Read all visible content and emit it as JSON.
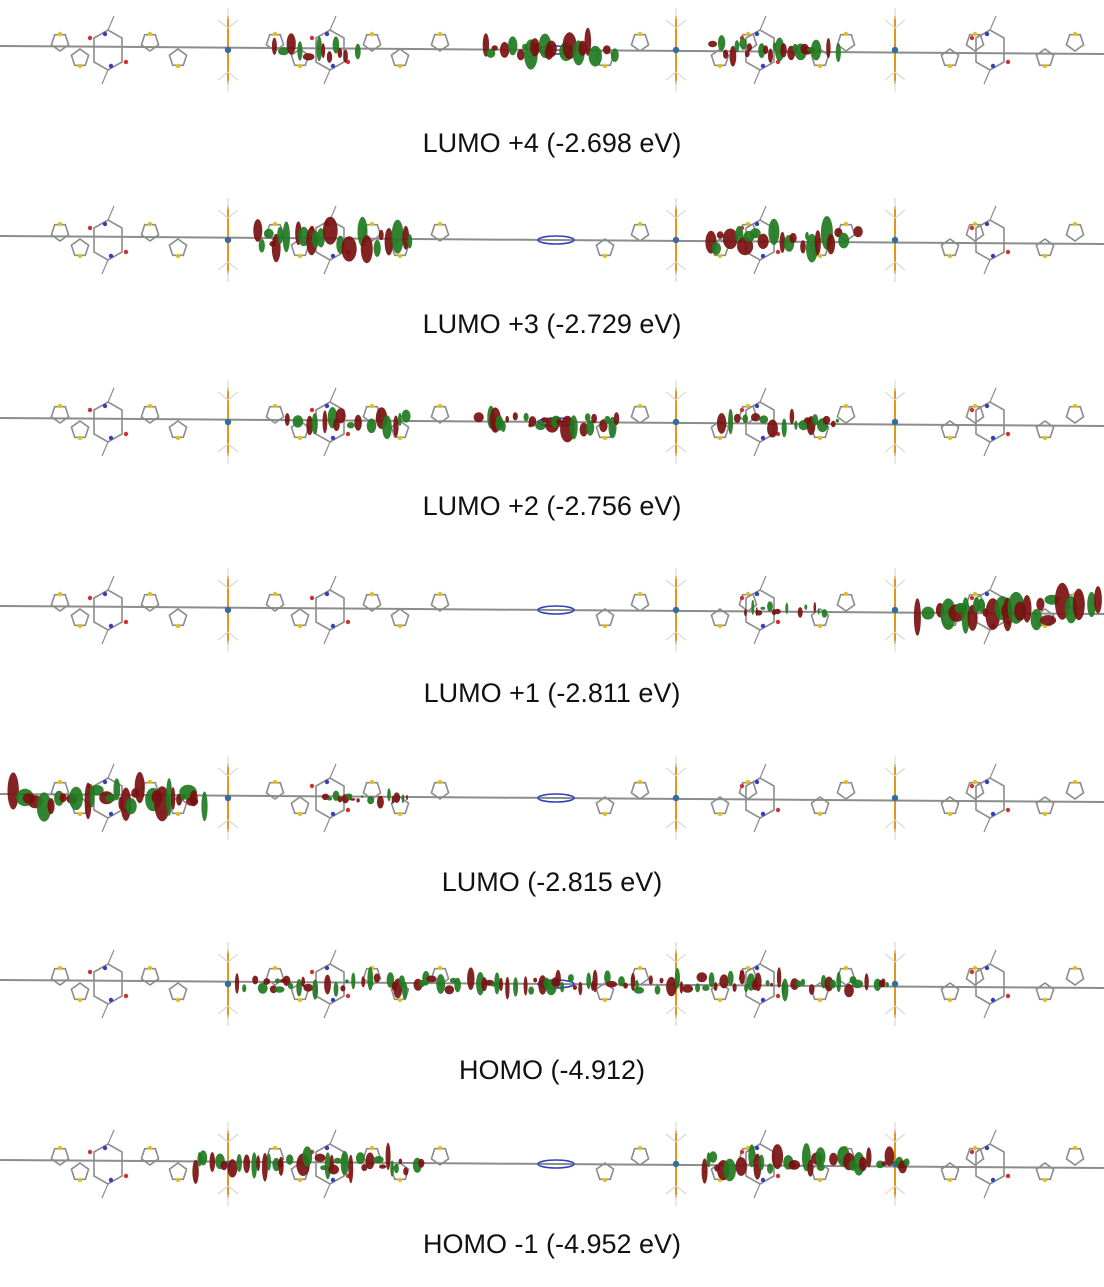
{
  "colors": {
    "positive_lobe": "#1f7a1f",
    "negative_lobe": "#7a1010",
    "backbone": "#8c8c8c",
    "hydrogen": "#d9d9d9",
    "sulfur": "#e0c020",
    "phosphorus": "#e08a00",
    "platinum": "#2f6f9f",
    "nitrogen": "#3040c0",
    "oxygen": "#d03030"
  },
  "orbitals": [
    {
      "label": "LUMO +4 (-2.698 eV)",
      "density": [
        [
          270,
          360,
          0.8
        ],
        [
          480,
          620,
          1.0
        ],
        [
          710,
          840,
          0.8
        ]
      ]
    },
    {
      "label": "LUMO +3 (-2.729 eV)",
      "density": [
        [
          255,
          410,
          1.1
        ],
        [
          705,
          860,
          1.1
        ]
      ]
    },
    {
      "label": "LUMO +2 (-2.756 eV)",
      "density": [
        [
          285,
          410,
          0.8
        ],
        [
          475,
          615,
          1.0
        ],
        [
          715,
          835,
          0.8
        ]
      ]
    },
    {
      "label": "LUMO +1 (-2.811 eV)",
      "density": [
        [
          738,
          830,
          0.5
        ],
        [
          915,
          1104,
          1.2
        ]
      ]
    },
    {
      "label": "LUMO (-2.815 eV)",
      "density": [
        [
          10,
          210,
          1.2
        ],
        [
          320,
          410,
          0.5
        ]
      ]
    },
    {
      "label": "HOMO (-4.912)",
      "density": [
        [
          230,
          890,
          0.75
        ]
      ]
    },
    {
      "label": "HOMO -1 (-4.952 eV)",
      "density": [
        [
          190,
          420,
          0.9
        ],
        [
          700,
          910,
          0.9
        ]
      ]
    }
  ]
}
